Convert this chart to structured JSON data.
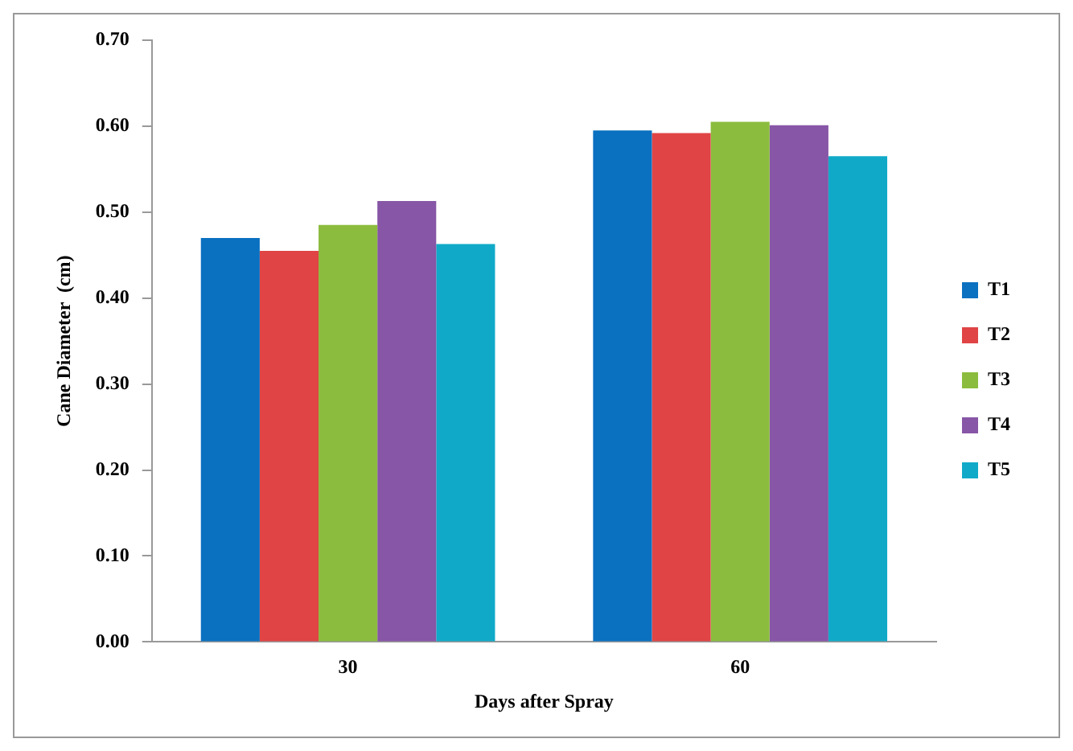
{
  "chart_data": {
    "type": "bar",
    "xlabel": "Days after Spray",
    "ylabel": "Cane Diameter  (cm)",
    "categories": [
      "30",
      "60"
    ],
    "series": [
      {
        "name": "T1",
        "color": "#0a70c0",
        "values": [
          0.47,
          0.595
        ]
      },
      {
        "name": "T2",
        "color": "#e04444",
        "values": [
          0.455,
          0.592
        ]
      },
      {
        "name": "T3",
        "color": "#8cbc3e",
        "values": [
          0.485,
          0.605
        ]
      },
      {
        "name": "T4",
        "color": "#8756a6",
        "values": [
          0.513,
          0.601
        ]
      },
      {
        "name": "T5",
        "color": "#10aac8",
        "values": [
          0.463,
          0.565
        ]
      }
    ],
    "ylim": [
      0,
      0.7
    ],
    "yticks": [
      {
        "value": 0,
        "label": "0.00"
      },
      {
        "value": 0.1,
        "label": "0.10"
      },
      {
        "value": 0.2,
        "label": "0.20"
      },
      {
        "value": 0.3,
        "label": "0.30"
      },
      {
        "value": 0.4,
        "label": "0.40"
      },
      {
        "value": 0.5,
        "label": "0.50"
      },
      {
        "value": 0.6,
        "label": "0.60"
      },
      {
        "value": 0.7,
        "label": "0.70"
      }
    ],
    "grid": false,
    "legend": "right"
  }
}
